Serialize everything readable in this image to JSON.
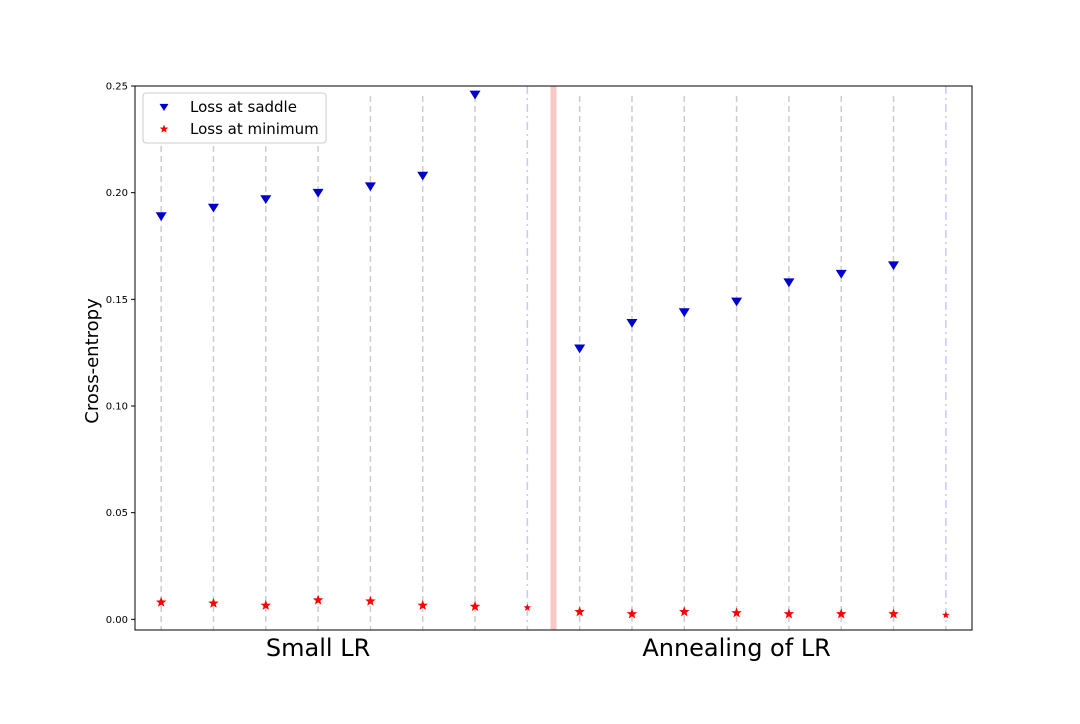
{
  "chart_data": {
    "type": "scatter",
    "title": "",
    "ylabel": "Cross-entropy",
    "xlabel": "",
    "ylim": [
      -0.005,
      0.25
    ],
    "xlim": [
      0.5,
      16.5
    ],
    "yticks": [
      0.0,
      0.05,
      0.1,
      0.15,
      0.2,
      0.25
    ],
    "ytick_labels": [
      "0.00",
      "0.05",
      "0.10",
      "0.15",
      "0.20",
      "0.25"
    ],
    "grid": false,
    "legend_position": "top-left",
    "group_labels": [
      {
        "text": "Small LR",
        "x": 4.0
      },
      {
        "text": "Annealing of LR",
        "x": 12.0
      }
    ],
    "separator": {
      "x": 8.5,
      "color": "#f4a3a3"
    },
    "x": [
      1,
      2,
      3,
      4,
      5,
      6,
      7,
      8,
      9,
      10,
      11,
      12,
      13,
      14,
      15,
      16
    ],
    "series": [
      {
        "name": "Loss at saddle",
        "marker": "triangle-down",
        "color": "#0000cc",
        "x": [
          1,
          2,
          3,
          4,
          5,
          6,
          7,
          9,
          10,
          11,
          12,
          13,
          14,
          15
        ],
        "values": [
          0.189,
          0.193,
          0.197,
          0.2,
          0.203,
          0.208,
          0.246,
          0.127,
          0.139,
          0.144,
          0.149,
          0.158,
          0.162,
          0.166
        ]
      },
      {
        "name": "Loss at minimum",
        "marker": "star",
        "color": "#ff0000",
        "x": [
          1,
          2,
          3,
          4,
          5,
          6,
          7,
          8,
          9,
          10,
          11,
          12,
          13,
          14,
          15,
          16
        ],
        "values": [
          0.008,
          0.0075,
          0.0065,
          0.009,
          0.0085,
          0.0065,
          0.006,
          0.0055,
          0.0035,
          0.0025,
          0.0035,
          0.003,
          0.0025,
          0.0025,
          0.0025,
          0.002
        ]
      }
    ],
    "connectors": {
      "dashed_x": [
        1,
        2,
        3,
        4,
        5,
        6,
        7,
        9,
        10,
        11,
        12,
        13,
        14,
        15
      ],
      "dashdot_x": [
        8,
        16
      ]
    }
  }
}
